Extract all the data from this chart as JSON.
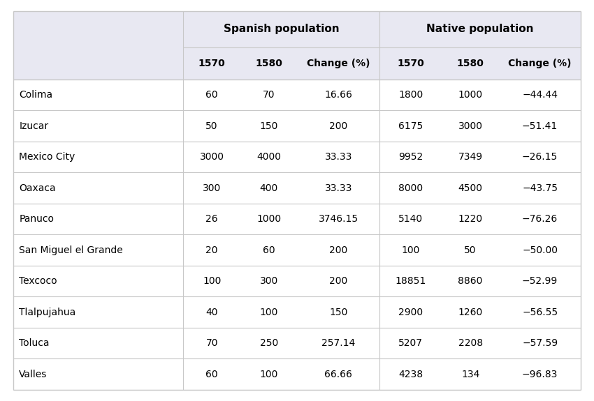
{
  "cities": [
    "Colima",
    "Izucar",
    "Mexico City",
    "Oaxaca",
    "Panuco",
    "San Miguel el Grande",
    "Texcoco",
    "Tlalpujahua",
    "Toluca",
    "Valles"
  ],
  "spanish_1570": [
    "60",
    "50",
    "3000",
    "300",
    "26",
    "20",
    "100",
    "40",
    "70",
    "60"
  ],
  "spanish_1580": [
    "70",
    "150",
    "4000",
    "400",
    "1000",
    "60",
    "300",
    "100",
    "250",
    "100"
  ],
  "spanish_change": [
    "16.66",
    "200",
    "33.33",
    "33.33",
    "3746.15",
    "200",
    "200",
    "150",
    "257.14",
    "66.66"
  ],
  "native_1570": [
    "1800",
    "6175",
    "9952",
    "8000",
    "5140",
    "100",
    "18851",
    "2900",
    "5207",
    "4238"
  ],
  "native_1580": [
    "1000",
    "3000",
    "7349",
    "4500",
    "1220",
    "50",
    "8860",
    "1260",
    "2208",
    "134"
  ],
  "native_change": [
    "−44.44",
    "−51.41",
    "−26.15",
    "−43.75",
    "−76.26",
    "−50.00",
    "−52.99",
    "−56.55",
    "−57.59",
    "−96.83"
  ],
  "header1_label": "Spanish population",
  "header2_label": "Native population",
  "col_headers": [
    "1570",
    "1580",
    "Change (%)",
    "1570",
    "1580",
    "Change (%)"
  ],
  "bg_header_color": "#e8e8f2",
  "bg_row_color": "#ffffff",
  "border_color": "#c8c8c8",
  "text_color": "#000000",
  "header_text_color": "#000000",
  "fig_width": 8.5,
  "fig_height": 5.75,
  "dpi": 100
}
